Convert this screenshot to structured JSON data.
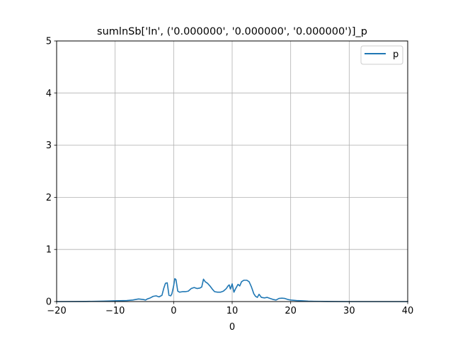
{
  "chart_data": {
    "type": "line",
    "title": "sumlnSb['ln', ('0.000000', '0.000000', '0.000000')]_p",
    "xlabel": "0",
    "ylabel": "",
    "xlim": [
      -20,
      40
    ],
    "ylim": [
      0,
      5
    ],
    "grid": true,
    "legend_placement": "top-right",
    "x_ticks": [
      -20,
      -10,
      0,
      10,
      20,
      30,
      40
    ],
    "x_tick_labels": [
      "−20",
      "−10",
      "0",
      "10",
      "20",
      "30",
      "40"
    ],
    "y_ticks": [
      0,
      1,
      2,
      3,
      4,
      5
    ],
    "y_tick_labels": [
      "0",
      "1",
      "2",
      "3",
      "4",
      "5"
    ],
    "series": [
      {
        "name": "p",
        "color": "#1f77b4",
        "points": [
          [
            -20,
            0
          ],
          [
            -15,
            0.002
          ],
          [
            -12,
            0.008
          ],
          [
            -10,
            0.015
          ],
          [
            -8,
            0.02
          ],
          [
            -7,
            0.03
          ],
          [
            -6,
            0.05
          ],
          [
            -5.2,
            0.04
          ],
          [
            -4.8,
            0.03
          ],
          [
            -4.5,
            0.05
          ],
          [
            -4,
            0.07
          ],
          [
            -3.5,
            0.1
          ],
          [
            -3,
            0.11
          ],
          [
            -2.5,
            0.09
          ],
          [
            -2,
            0.12
          ],
          [
            -1.7,
            0.25
          ],
          [
            -1.4,
            0.35
          ],
          [
            -1.1,
            0.36
          ],
          [
            -0.8,
            0.12
          ],
          [
            -0.5,
            0.11
          ],
          [
            -0.3,
            0.15
          ],
          [
            0,
            0.3
          ],
          [
            0.2,
            0.44
          ],
          [
            0.4,
            0.42
          ],
          [
            0.7,
            0.2
          ],
          [
            1.0,
            0.18
          ],
          [
            1.5,
            0.19
          ],
          [
            2.0,
            0.19
          ],
          [
            2.5,
            0.2
          ],
          [
            3.0,
            0.25
          ],
          [
            3.5,
            0.27
          ],
          [
            4.0,
            0.25
          ],
          [
            4.5,
            0.26
          ],
          [
            4.8,
            0.28
          ],
          [
            5.1,
            0.43
          ],
          [
            5.4,
            0.38
          ],
          [
            5.8,
            0.35
          ],
          [
            6.2,
            0.3
          ],
          [
            6.6,
            0.24
          ],
          [
            7.0,
            0.19
          ],
          [
            7.5,
            0.18
          ],
          [
            8.0,
            0.18
          ],
          [
            8.5,
            0.2
          ],
          [
            9.0,
            0.25
          ],
          [
            9.3,
            0.3
          ],
          [
            9.5,
            0.32
          ],
          [
            9.7,
            0.24
          ],
          [
            10.0,
            0.34
          ],
          [
            10.3,
            0.18
          ],
          [
            10.6,
            0.25
          ],
          [
            11.0,
            0.33
          ],
          [
            11.3,
            0.3
          ],
          [
            11.6,
            0.38
          ],
          [
            12.0,
            0.41
          ],
          [
            12.5,
            0.41
          ],
          [
            12.9,
            0.38
          ],
          [
            13.3,
            0.28
          ],
          [
            13.7,
            0.15
          ],
          [
            14.0,
            0.1
          ],
          [
            14.3,
            0.08
          ],
          [
            14.6,
            0.14
          ],
          [
            15.0,
            0.08
          ],
          [
            15.5,
            0.07
          ],
          [
            16.0,
            0.08
          ],
          [
            16.5,
            0.06
          ],
          [
            17.0,
            0.04
          ],
          [
            17.5,
            0.03
          ],
          [
            18.0,
            0.06
          ],
          [
            18.5,
            0.065
          ],
          [
            19.0,
            0.06
          ],
          [
            19.5,
            0.04
          ],
          [
            20.0,
            0.03
          ],
          [
            21.0,
            0.02
          ],
          [
            22.0,
            0.015
          ],
          [
            23.0,
            0.008
          ],
          [
            24.0,
            0.005
          ],
          [
            26.0,
            0.002
          ],
          [
            30.0,
            0.0
          ],
          [
            40.0,
            0.0
          ]
        ]
      }
    ]
  }
}
